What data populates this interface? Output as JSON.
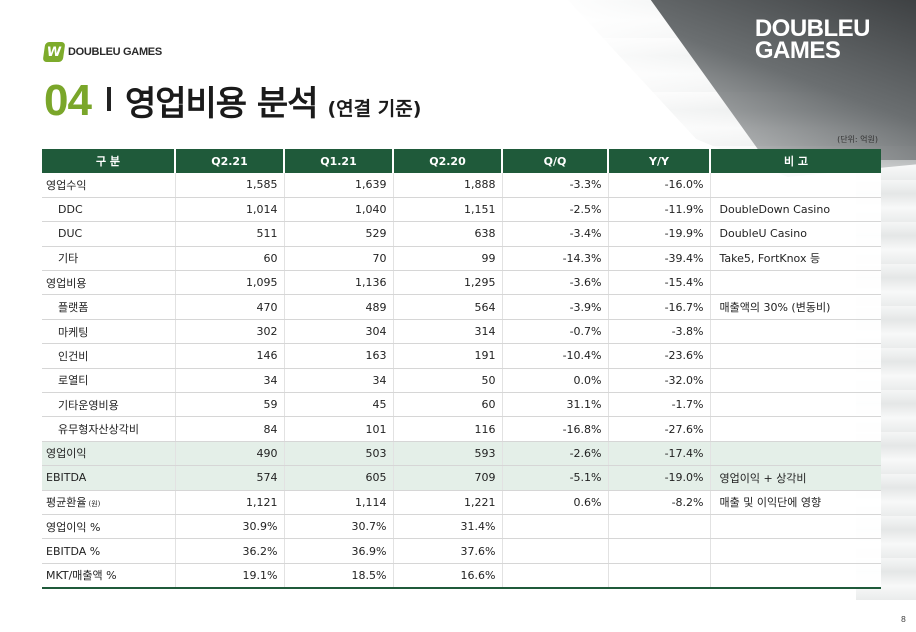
{
  "header": {
    "logo_small_mark": "W",
    "logo_small_text": "DOUBLEU GAMES",
    "logo_big_line1": "DOUBLEU",
    "logo_big_line2": "GAMES",
    "section_number": "04",
    "title": "영업비용 분석",
    "subtitle": "(연결 기준)",
    "unit_note": "(단위: 억원)"
  },
  "table": {
    "headers": [
      "구 분",
      "Q2.21",
      "Q1.21",
      "Q2.20",
      "Q/Q",
      "Y/Y",
      "비 고"
    ],
    "rows": [
      {
        "label": "영업수익",
        "q221": "1,585",
        "q121": "1,639",
        "q220": "1,888",
        "qq": "-3.3%",
        "yy": "-16.0%",
        "note": ""
      },
      {
        "label": "DDC",
        "q221": "1,014",
        "q121": "1,040",
        "q220": "1,151",
        "qq": "-2.5%",
        "yy": "-11.9%",
        "note": "DoubleDown Casino"
      },
      {
        "label": "DUC",
        "q221": "511",
        "q121": "529",
        "q220": "638",
        "qq": "-3.4%",
        "yy": "-19.9%",
        "note": "DoubleU Casino"
      },
      {
        "label": "기타",
        "q221": "60",
        "q121": "70",
        "q220": "99",
        "qq": "-14.3%",
        "yy": "-39.4%",
        "note": "Take5, FortKnox 등"
      },
      {
        "label": "영업비용",
        "q221": "1,095",
        "q121": "1,136",
        "q220": "1,295",
        "qq": "-3.6%",
        "yy": "-15.4%",
        "note": ""
      },
      {
        "label": "플랫폼",
        "q221": "470",
        "q121": "489",
        "q220": "564",
        "qq": "-3.9%",
        "yy": "-16.7%",
        "note": "매출액의 30% (변동비)"
      },
      {
        "label": "마케팅",
        "q221": "302",
        "q121": "304",
        "q220": "314",
        "qq": "-0.7%",
        "yy": "-3.8%",
        "note": ""
      },
      {
        "label": "인건비",
        "q221": "146",
        "q121": "163",
        "q220": "191",
        "qq": "-10.4%",
        "yy": "-23.6%",
        "note": ""
      },
      {
        "label": "로열티",
        "q221": "34",
        "q121": "34",
        "q220": "50",
        "qq": "0.0%",
        "yy": "-32.0%",
        "note": ""
      },
      {
        "label": "기타운영비용",
        "q221": "59",
        "q121": "45",
        "q220": "60",
        "qq": "31.1%",
        "yy": "-1.7%",
        "note": ""
      },
      {
        "label": "유무형자산상각비",
        "q221": "84",
        "q121": "101",
        "q220": "116",
        "qq": "-16.8%",
        "yy": "-27.6%",
        "note": ""
      },
      {
        "label": "영업이익",
        "q221": "490",
        "q121": "503",
        "q220": "593",
        "qq": "-2.6%",
        "yy": "-17.4%",
        "note": ""
      },
      {
        "label": "EBITDA",
        "q221": "574",
        "q121": "605",
        "q220": "709",
        "qq": "-5.1%",
        "yy": "-19.0%",
        "note": "영업이익 + 상각비"
      },
      {
        "label": "평균환율",
        "label_suffix": "(원)",
        "q221": "1,121",
        "q121": "1,114",
        "q220": "1,221",
        "qq": "0.6%",
        "yy": "-8.2%",
        "note": "매출 및 이익단에 영향"
      },
      {
        "label": "영업이익 %",
        "q221": "30.9%",
        "q121": "30.7%",
        "q220": "31.4%",
        "qq": "",
        "yy": "",
        "note": ""
      },
      {
        "label": "EBITDA %",
        "q221": "36.2%",
        "q121": "36.9%",
        "q220": "37.6%",
        "qq": "",
        "yy": "",
        "note": ""
      },
      {
        "label": "MKT/매출액 %",
        "q221": "19.1%",
        "q121": "18.5%",
        "q220": "16.6%",
        "qq": "",
        "yy": "",
        "note": ""
      }
    ]
  },
  "footer": {
    "page_number": "8"
  },
  "colors": {
    "brand_green": "#7aa62a",
    "header_green": "#1f5a3a",
    "highlight_row": "#e4efe8"
  }
}
